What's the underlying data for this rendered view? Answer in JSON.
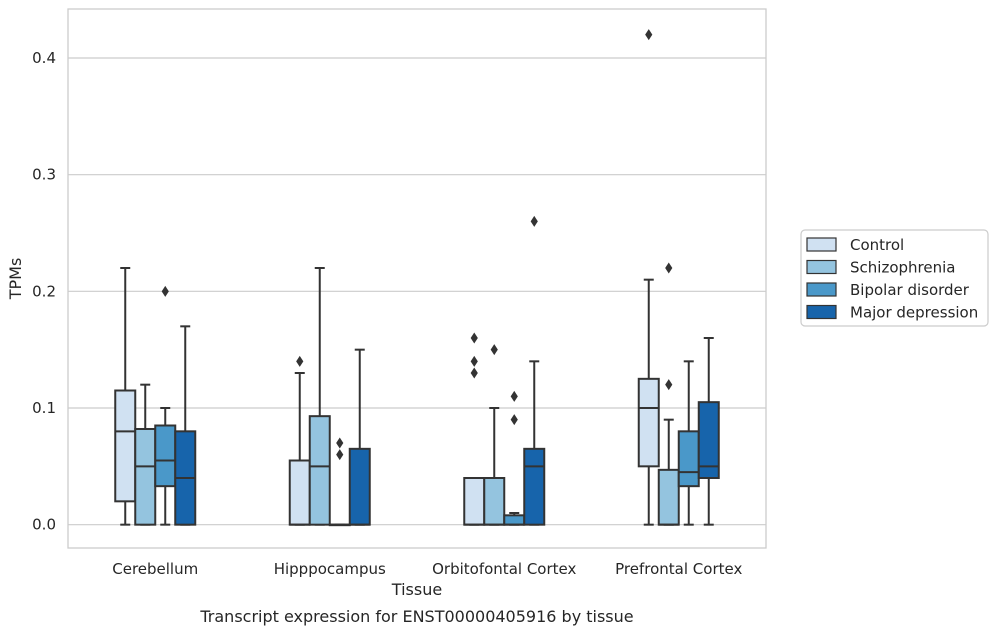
{
  "chart_data": {
    "type": "box",
    "xlabel": "Tissue",
    "ylabel": "TPMs",
    "caption": "Transcript expression for ENST00000405916 by tissue",
    "ylim": [
      -0.02,
      0.442
    ],
    "yticks": [
      0.0,
      0.1,
      0.2,
      0.3,
      0.4
    ],
    "ytick_labels": [
      "0.0",
      "0.1",
      "0.2",
      "0.3",
      "0.4"
    ],
    "grid": "horizontal",
    "legend_position": "right",
    "categories": [
      "Cerebellum",
      "Hipppocampus",
      "Orbitofontal Cortex",
      "Prefrontal Cortex"
    ],
    "series": [
      {
        "name": "Control",
        "color": "#d0e1f2",
        "boxes": [
          {
            "whislo": 0.0,
            "q1": 0.02,
            "med": 0.08,
            "q3": 0.115,
            "whishi": 0.22,
            "fliers": []
          },
          {
            "whislo": 0.0,
            "q1": 0.0,
            "med": 0.0,
            "q3": 0.055,
            "whishi": 0.13,
            "fliers": [
              0.14
            ]
          },
          {
            "whislo": 0.0,
            "q1": 0.0,
            "med": 0.0,
            "q3": 0.04,
            "whishi": 0.04,
            "fliers": [
              0.13,
              0.14,
              0.16
            ]
          },
          {
            "whislo": 0.0,
            "q1": 0.05,
            "med": 0.1,
            "q3": 0.125,
            "whishi": 0.21,
            "fliers": [
              0.42
            ]
          }
        ]
      },
      {
        "name": "Schizophrenia",
        "color": "#94c4df",
        "boxes": [
          {
            "whislo": 0.0,
            "q1": 0.0,
            "med": 0.05,
            "q3": 0.082,
            "whishi": 0.12,
            "fliers": []
          },
          {
            "whislo": 0.0,
            "q1": 0.0,
            "med": 0.05,
            "q3": 0.093,
            "whishi": 0.22,
            "fliers": []
          },
          {
            "whislo": 0.0,
            "q1": 0.0,
            "med": 0.0,
            "q3": 0.04,
            "whishi": 0.1,
            "fliers": [
              0.15
            ]
          },
          {
            "whislo": 0.0,
            "q1": 0.0,
            "med": 0.0,
            "q3": 0.047,
            "whishi": 0.09,
            "fliers": [
              0.12,
              0.22
            ]
          }
        ]
      },
      {
        "name": "Bipolar disorder",
        "color": "#4a98c9",
        "boxes": [
          {
            "whislo": 0.0,
            "q1": 0.033,
            "med": 0.055,
            "q3": 0.085,
            "whishi": 0.1,
            "fliers": [
              0.2
            ]
          },
          {
            "whislo": 0.0,
            "q1": 0.0,
            "med": 0.0,
            "q3": 0.0,
            "whishi": 0.0,
            "fliers": [
              0.06,
              0.07
            ]
          },
          {
            "whislo": 0.0,
            "q1": 0.0,
            "med": 0.0,
            "q3": 0.008,
            "whishi": 0.01,
            "fliers": [
              0.09,
              0.11
            ]
          },
          {
            "whislo": 0.0,
            "q1": 0.033,
            "med": 0.045,
            "q3": 0.08,
            "whishi": 0.14,
            "fliers": []
          }
        ]
      },
      {
        "name": "Major depression",
        "color": "#1764ab",
        "boxes": [
          {
            "whislo": 0.0,
            "q1": 0.0,
            "med": 0.04,
            "q3": 0.08,
            "whishi": 0.17,
            "fliers": []
          },
          {
            "whislo": 0.0,
            "q1": 0.0,
            "med": 0.0,
            "q3": 0.065,
            "whishi": 0.15,
            "fliers": []
          },
          {
            "whislo": 0.0,
            "q1": 0.0,
            "med": 0.05,
            "q3": 0.065,
            "whishi": 0.14,
            "fliers": [
              0.26
            ]
          },
          {
            "whislo": 0.0,
            "q1": 0.04,
            "med": 0.05,
            "q3": 0.105,
            "whishi": 0.16,
            "fliers": []
          }
        ]
      }
    ]
  }
}
